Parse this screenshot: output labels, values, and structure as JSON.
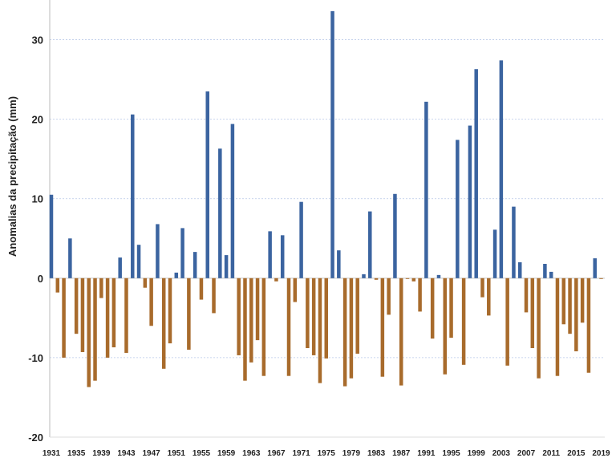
{
  "chart_data": {
    "type": "bar",
    "title": "",
    "xlabel": "",
    "ylabel": "Anomalias da precipitação (mm)",
    "ylim": [
      -20,
      35
    ],
    "yticks": [
      -20,
      -10,
      0,
      10,
      20,
      30
    ],
    "grid": "horizontal dotted",
    "legend": "none",
    "positive_color": "#3b64a0",
    "negative_color": "#a86b2c",
    "x_tick_labels": [
      "1931",
      "1935",
      "1939",
      "1943",
      "1947",
      "1951",
      "1955",
      "1959",
      "1963",
      "1967",
      "1971",
      "1975",
      "1979",
      "1983",
      "1987",
      "1991",
      "1995",
      "1999",
      "2003",
      "2007",
      "2011",
      "2015",
      "2019"
    ],
    "years": [
      1931,
      1932,
      1933,
      1934,
      1935,
      1936,
      1937,
      1938,
      1939,
      1940,
      1941,
      1942,
      1943,
      1944,
      1945,
      1946,
      1947,
      1948,
      1949,
      1950,
      1951,
      1952,
      1953,
      1954,
      1955,
      1956,
      1957,
      1958,
      1959,
      1960,
      1961,
      1962,
      1963,
      1964,
      1965,
      1966,
      1967,
      1968,
      1969,
      1970,
      1971,
      1972,
      1973,
      1974,
      1975,
      1976,
      1977,
      1978,
      1979,
      1980,
      1981,
      1982,
      1983,
      1984,
      1985,
      1986,
      1987,
      1988,
      1989,
      1990,
      1991,
      1992,
      1993,
      1994,
      1995,
      1996,
      1997,
      1998,
      1999,
      2000,
      2001,
      2002,
      2003,
      2004,
      2005,
      2006,
      2007,
      2008,
      2009,
      2010,
      2011,
      2012,
      2013,
      2014,
      2015,
      2016,
      2017,
      2018,
      2019
    ],
    "values": [
      10.5,
      -1.8,
      -10.0,
      5.0,
      -7.0,
      -9.3,
      -13.7,
      -12.9,
      -2.5,
      -10.0,
      -8.7,
      2.6,
      -9.4,
      20.6,
      4.2,
      -1.2,
      -6.0,
      6.8,
      -11.4,
      -8.2,
      0.7,
      6.3,
      -9.0,
      3.3,
      -2.7,
      23.5,
      -4.4,
      16.3,
      2.9,
      19.4,
      -9.7,
      -12.9,
      -10.6,
      -7.8,
      -12.3,
      5.9,
      -0.4,
      5.4,
      -12.3,
      -3.0,
      9.6,
      -8.8,
      -9.7,
      -13.2,
      -10.1,
      33.6,
      3.5,
      -13.6,
      -12.6,
      -9.5,
      0.5,
      8.4,
      -0.2,
      -12.4,
      -4.6,
      10.6,
      -13.5,
      -0.1,
      -0.4,
      -4.2,
      22.2,
      -7.6,
      0.4,
      -12.1,
      -7.5,
      17.4,
      -10.9,
      19.2,
      26.3,
      -2.4,
      -4.7,
      6.1,
      27.4,
      -11.0,
      9.0,
      2.0,
      -4.3,
      -8.8,
      -12.6,
      1.8,
      0.8,
      -12.3,
      -5.8,
      -7.0,
      -9.2,
      -5.6,
      -11.9,
      2.5,
      -0.1
    ]
  }
}
